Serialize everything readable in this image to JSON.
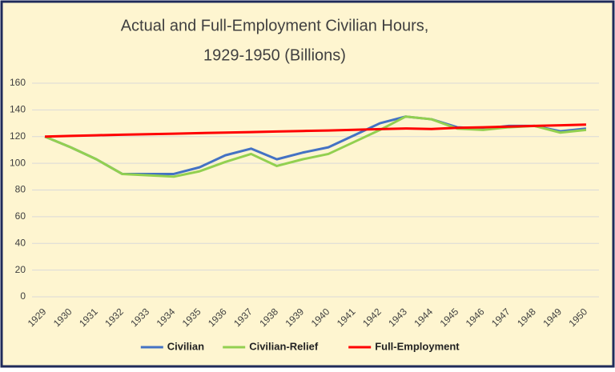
{
  "chart_data": {
    "type": "line",
    "title": [
      "Actual and Full-Employment Civilian Hours,",
      "1929-1950 (Billions)"
    ],
    "categories": [
      "1929",
      "1930",
      "1931",
      "1932",
      "1933",
      "1934",
      "1935",
      "1936",
      "1937",
      "1938",
      "1939",
      "1940",
      "1941",
      "1942",
      "1943",
      "1944",
      "1945",
      "1946",
      "1947",
      "1948",
      "1949",
      "1950"
    ],
    "series": [
      {
        "name": "Civilian",
        "color": "#4472c4",
        "values": [
          120,
          112,
          103,
          92,
          92,
          92,
          97,
          106,
          111,
          103,
          108,
          112,
          121,
          130,
          135,
          133,
          127,
          126,
          128,
          128,
          124,
          126
        ]
      },
      {
        "name": "Civilian-Relief",
        "color": "#92d050",
        "values": [
          120,
          112,
          103,
          92,
          91,
          90,
          94,
          101,
          107,
          98,
          103,
          107,
          116,
          125,
          135,
          133,
          126,
          125,
          127,
          128,
          123,
          125
        ]
      },
      {
        "name": "Full-Employment",
        "color": "#ff0000",
        "values": [
          120,
          120.5,
          121,
          121.4,
          121.8,
          122.2,
          122.6,
          123,
          123.4,
          123.8,
          124.2,
          124.6,
          125.1,
          125.6,
          126.1,
          125.7,
          126.6,
          127,
          127.5,
          128,
          128.5,
          129
        ]
      }
    ],
    "ylim": [
      0,
      160
    ],
    "yticks": [
      0,
      20,
      40,
      60,
      80,
      100,
      120,
      140,
      160
    ],
    "grid": true,
    "legend": "bottom"
  }
}
